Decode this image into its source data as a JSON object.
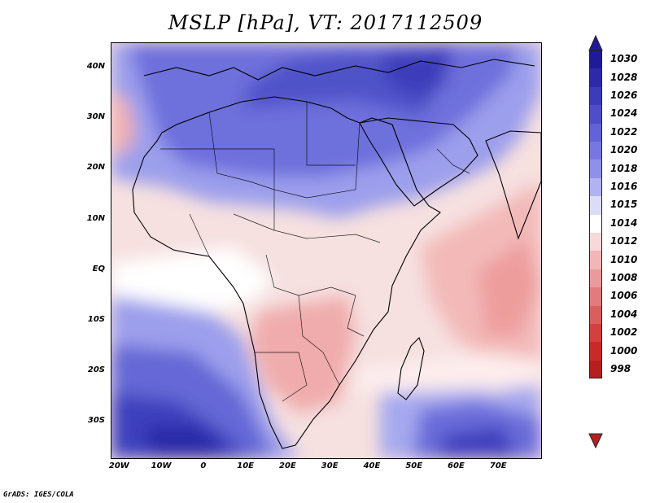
{
  "title": "MSLP [hPa], VT: 2017112509",
  "credit": "GrADS: IGES/COLA",
  "map": {
    "region": "Africa and western Indian Ocean",
    "lat_labels": [
      "40N",
      "30N",
      "20N",
      "10N",
      "EQ",
      "10S",
      "20S",
      "30S"
    ],
    "lat_values": [
      40,
      30,
      20,
      10,
      0,
      -10,
      -20,
      -30
    ],
    "lon_labels": [
      "20W",
      "10W",
      "0",
      "10E",
      "20E",
      "30E",
      "40E",
      "50E",
      "60E",
      "70E"
    ],
    "lon_values": [
      -20,
      -10,
      0,
      10,
      20,
      30,
      40,
      50,
      60,
      70
    ],
    "lon_range": [
      -22,
      80
    ],
    "lat_range": [
      -37,
      45
    ]
  },
  "legend": {
    "labels": [
      "1030",
      "1028",
      "1026",
      "1024",
      "1022",
      "1020",
      "1018",
      "1016",
      "1015",
      "1014",
      "1012",
      "1010",
      "1008",
      "1006",
      "1004",
      "1002",
      "1000",
      "998"
    ],
    "colors": [
      "#1f1a96",
      "#2c2aa8",
      "#3b3cba",
      "#4e4fc8",
      "#6163d6",
      "#7777e0",
      "#8f91e8",
      "#b0b3f0",
      "#dadcf8",
      "#ffffff",
      "#f8d8d8",
      "#f1b6b6",
      "#e99a9a",
      "#e07c7c",
      "#d95f5f",
      "#d24040",
      "#c82a2a",
      "#b51f1f"
    ]
  }
}
